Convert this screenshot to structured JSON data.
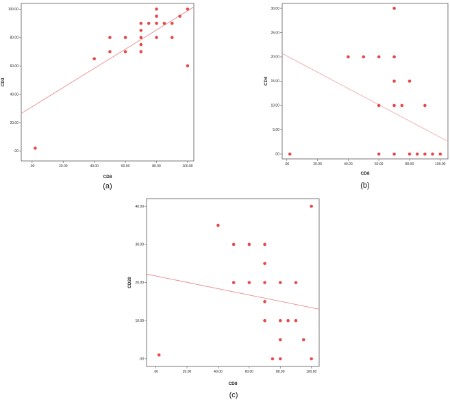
{
  "chart_data": [
    {
      "type": "scatter",
      "caption": "(a)",
      "xlabel": "CD8",
      "ylabel": "CD3",
      "xlim": [
        -7,
        104
      ],
      "ylim": [
        -7,
        104
      ],
      "xticks": [
        {
          "v": 0,
          "label": ".00"
        },
        {
          "v": 20,
          "label": "20.00"
        },
        {
          "v": 40,
          "label": "40.00"
        },
        {
          "v": 60,
          "label": "60.00"
        },
        {
          "v": 80,
          "label": "80.00"
        },
        {
          "v": 100,
          "label": "100.00"
        }
      ],
      "yticks": [
        {
          "v": 0,
          "label": ".00"
        },
        {
          "v": 20,
          "label": "20.00"
        },
        {
          "v": 40,
          "label": "40.00"
        },
        {
          "v": 60,
          "label": "60.00"
        },
        {
          "v": 80,
          "label": "80.00"
        },
        {
          "v": 100,
          "label": "100.00"
        }
      ],
      "grid": false,
      "color": "#e8484a",
      "line_color": "#e58a8a",
      "fit_line": {
        "x": [
          -7,
          104
        ],
        "y": [
          26.5,
          101.5
        ]
      },
      "points": [
        {
          "x": 2,
          "y": 2
        },
        {
          "x": 40,
          "y": 65
        },
        {
          "x": 50,
          "y": 80
        },
        {
          "x": 50,
          "y": 70
        },
        {
          "x": 60,
          "y": 80
        },
        {
          "x": 60,
          "y": 70
        },
        {
          "x": 70,
          "y": 90
        },
        {
          "x": 70,
          "y": 85
        },
        {
          "x": 70,
          "y": 80
        },
        {
          "x": 70,
          "y": 75
        },
        {
          "x": 70,
          "y": 70
        },
        {
          "x": 75,
          "y": 90
        },
        {
          "x": 80,
          "y": 100
        },
        {
          "x": 80,
          "y": 95
        },
        {
          "x": 80,
          "y": 90
        },
        {
          "x": 80,
          "y": 80
        },
        {
          "x": 85,
          "y": 90
        },
        {
          "x": 90,
          "y": 90
        },
        {
          "x": 90,
          "y": 80
        },
        {
          "x": 95,
          "y": 95
        },
        {
          "x": 100,
          "y": 100
        },
        {
          "x": 100,
          "y": 60
        }
      ]
    },
    {
      "type": "scatter",
      "caption": "(b)",
      "xlabel": "CD8",
      "ylabel": "CD4",
      "xlim": [
        -3,
        105
      ],
      "ylim": [
        -1,
        31
      ],
      "xticks": [
        {
          "v": 0,
          "label": ".00"
        },
        {
          "v": 20,
          "label": "20.00"
        },
        {
          "v": 40,
          "label": "40.00"
        },
        {
          "v": 60,
          "label": "60.00"
        },
        {
          "v": 80,
          "label": "80.00"
        },
        {
          "v": 100,
          "label": "100.00"
        }
      ],
      "yticks": [
        {
          "v": 0,
          "label": ".00"
        },
        {
          "v": 5,
          "label": "5.00"
        },
        {
          "v": 10,
          "label": "10.00"
        },
        {
          "v": 15,
          "label": "15.00"
        },
        {
          "v": 20,
          "label": "20.00"
        },
        {
          "v": 25,
          "label": "25.00"
        },
        {
          "v": 30,
          "label": "30.00"
        }
      ],
      "grid": false,
      "color": "#e8484a",
      "line_color": "#f0a8a8",
      "fit_line": {
        "x": [
          -3,
          105
        ],
        "y": [
          20.7,
          2.6
        ]
      },
      "points": [
        {
          "x": 2,
          "y": 0
        },
        {
          "x": 40,
          "y": 20
        },
        {
          "x": 50,
          "y": 20
        },
        {
          "x": 60,
          "y": 20
        },
        {
          "x": 60,
          "y": 10
        },
        {
          "x": 60,
          "y": 0
        },
        {
          "x": 70,
          "y": 30
        },
        {
          "x": 70,
          "y": 20
        },
        {
          "x": 70,
          "y": 15
        },
        {
          "x": 70,
          "y": 10
        },
        {
          "x": 70,
          "y": 0
        },
        {
          "x": 75,
          "y": 10
        },
        {
          "x": 80,
          "y": 15
        },
        {
          "x": 80,
          "y": 0
        },
        {
          "x": 85,
          "y": 0
        },
        {
          "x": 90,
          "y": 10
        },
        {
          "x": 90,
          "y": 0
        },
        {
          "x": 95,
          "y": 0
        },
        {
          "x": 100,
          "y": 0
        }
      ]
    },
    {
      "type": "scatter",
      "caption": "(c)",
      "xlabel": "CD8",
      "ylabel": "CD20",
      "xlim": [
        -6,
        105
      ],
      "ylim": [
        -2,
        42
      ],
      "xticks": [
        {
          "v": 0,
          "label": ".00"
        },
        {
          "v": 20,
          "label": "20.00"
        },
        {
          "v": 40,
          "label": "40.00"
        },
        {
          "v": 60,
          "label": "60.00"
        },
        {
          "v": 80,
          "label": "80.00"
        },
        {
          "v": 100,
          "label": "100.00"
        }
      ],
      "yticks": [
        {
          "v": 0,
          "label": ".00"
        },
        {
          "v": 10,
          "label": "10.00"
        },
        {
          "v": 20,
          "label": "20.00"
        },
        {
          "v": 30,
          "label": "30.00"
        },
        {
          "v": 40,
          "label": "40.00"
        }
      ],
      "grid": false,
      "color": "#e8484a",
      "line_color": "#e58a8a",
      "fit_line": {
        "x": [
          -6,
          105
        ],
        "y": [
          22.2,
          13.0
        ]
      },
      "points": [
        {
          "x": 2,
          "y": 1
        },
        {
          "x": 40,
          "y": 35
        },
        {
          "x": 50,
          "y": 30
        },
        {
          "x": 50,
          "y": 20
        },
        {
          "x": 60,
          "y": 30
        },
        {
          "x": 60,
          "y": 20
        },
        {
          "x": 70,
          "y": 30
        },
        {
          "x": 70,
          "y": 25
        },
        {
          "x": 70,
          "y": 20
        },
        {
          "x": 70,
          "y": 15
        },
        {
          "x": 70,
          "y": 10
        },
        {
          "x": 75,
          "y": 0
        },
        {
          "x": 80,
          "y": 20
        },
        {
          "x": 80,
          "y": 10
        },
        {
          "x": 80,
          "y": 5
        },
        {
          "x": 80,
          "y": 0
        },
        {
          "x": 85,
          "y": 10
        },
        {
          "x": 90,
          "y": 20
        },
        {
          "x": 90,
          "y": 10
        },
        {
          "x": 95,
          "y": 5
        },
        {
          "x": 100,
          "y": 40
        },
        {
          "x": 100,
          "y": 0
        }
      ]
    }
  ]
}
